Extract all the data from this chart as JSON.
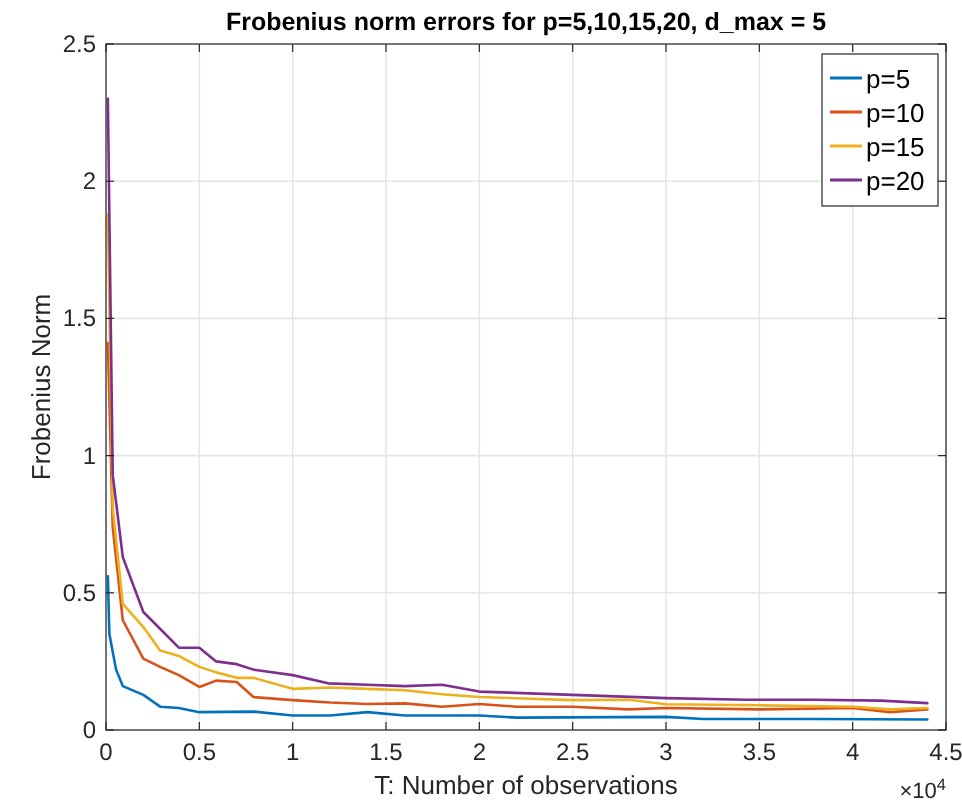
{
  "chart_data": {
    "type": "line",
    "title": "Frobenius norm errors for p=5,10,15,20, d_max = 5",
    "xlabel": "T: Number of observations",
    "ylabel": "Frobenius Norm",
    "annotations": [
      "×10$^{4}$"
    ],
    "xlim": [
      0,
      4.5
    ],
    "xticks": [
      0,
      0.5,
      1,
      1.5,
      2,
      2.5,
      3,
      3.5,
      4,
      4.5
    ],
    "ylim": [
      0,
      2.5
    ],
    "yticks": [
      0,
      0.5,
      1,
      1.5,
      2,
      2.5
    ],
    "grid": true,
    "legend": "top right",
    "marker": "none",
    "line_style": "solid",
    "series": [
      {
        "name": "p=5",
        "color": "#0072bd",
        "x": [
          0.01,
          0.018,
          0.054,
          0.09,
          0.2,
          0.29,
          0.39,
          0.5,
          0.79,
          1,
          1.2,
          1.4,
          1.6,
          2,
          2.2,
          3,
          3.2,
          3.8,
          4.4
        ],
        "values": [
          0.56,
          0.35,
          0.22,
          0.16,
          0.128,
          0.085,
          0.08,
          0.065,
          0.067,
          0.053,
          0.053,
          0.065,
          0.053,
          0.053,
          0.045,
          0.048,
          0.04,
          0.04,
          0.038
        ]
      },
      {
        "name": "p=10",
        "color": "#d95319",
        "x": [
          0.01,
          0.036,
          0.09,
          0.2,
          0.29,
          0.39,
          0.5,
          0.59,
          0.7,
          0.79,
          1,
          1.2,
          1.4,
          1.6,
          1.8,
          2,
          2.2,
          2.5,
          2.8,
          3,
          3.5,
          4,
          4.2,
          4.4
        ],
        "values": [
          1.41,
          0.74,
          0.4,
          0.26,
          0.23,
          0.2,
          0.157,
          0.18,
          0.175,
          0.12,
          0.109,
          0.1,
          0.095,
          0.097,
          0.085,
          0.095,
          0.085,
          0.085,
          0.075,
          0.08,
          0.075,
          0.08,
          0.065,
          0.075
        ]
      },
      {
        "name": "p=15",
        "color": "#edb120",
        "x": [
          0.01,
          0.036,
          0.09,
          0.2,
          0.29,
          0.39,
          0.5,
          0.59,
          0.7,
          0.79,
          1,
          1.2,
          1.4,
          1.6,
          1.8,
          2,
          2.5,
          2.8,
          3,
          3.5,
          4,
          4.2,
          4.4
        ],
        "values": [
          1.88,
          0.81,
          0.46,
          0.375,
          0.29,
          0.27,
          0.23,
          0.21,
          0.19,
          0.19,
          0.15,
          0.155,
          0.15,
          0.145,
          0.13,
          0.12,
          0.109,
          0.11,
          0.094,
          0.09,
          0.085,
          0.075,
          0.08
        ]
      },
      {
        "name": "p=20",
        "color": "#7e2f8e",
        "x": [
          0.01,
          0.036,
          0.09,
          0.2,
          0.39,
          0.5,
          0.59,
          0.7,
          0.79,
          1,
          1.19,
          1.4,
          1.6,
          1.8,
          2,
          2.5,
          3,
          3.43,
          3.79,
          4.15,
          4.4
        ],
        "values": [
          2.3,
          0.93,
          0.63,
          0.43,
          0.3,
          0.3,
          0.25,
          0.24,
          0.22,
          0.2,
          0.17,
          0.165,
          0.16,
          0.165,
          0.14,
          0.128,
          0.116,
          0.11,
          0.11,
          0.107,
          0.098
        ]
      }
    ]
  }
}
